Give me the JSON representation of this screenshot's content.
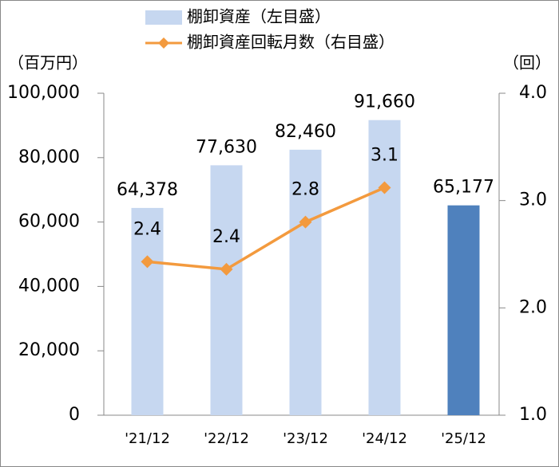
{
  "chart_data": {
    "type": "bar_line",
    "y_label": "（百万円）",
    "y2_label": "（回）",
    "categories": [
      "'21/12",
      "'22/12",
      "'23/12",
      "'24/12",
      "'25/12"
    ],
    "series": [
      {
        "name": "棚卸資産（左目盛）",
        "type": "bar",
        "color": "#c6d7f0",
        "colors": [
          "#c6d7f0",
          "#c6d7f0",
          "#c6d7f0",
          "#c6d7f0",
          "#4f81bd"
        ],
        "values": [
          64378,
          77630,
          82460,
          91660,
          65177
        ],
        "value_labels": [
          "64,378",
          "77,630",
          "82,460",
          "91,660",
          "65,177"
        ]
      },
      {
        "name": "棚卸資産回転月数（右目盛）",
        "type": "line",
        "axis": "y2",
        "color": "#f39a3e",
        "values": [
          2.43,
          2.36,
          2.8,
          3.12,
          null
        ],
        "value_labels": [
          "2.4",
          "2.4",
          "2.8",
          "3.1",
          null
        ]
      }
    ],
    "ylim": [
      0,
      100000
    ],
    "yticks": [
      0,
      {
        "value": 20000,
        "label": "20,000"
      },
      {
        "value": 40000,
        "label": "40,000"
      },
      {
        "value": 60000,
        "label": "60,000"
      },
      {
        "value": 80000,
        "label": "80,000"
      },
      {
        "value": 100000,
        "label": "100,000"
      }
    ],
    "y2lim": [
      1,
      4
    ],
    "y2ticks": [
      {
        "value": 1,
        "label": "1.0"
      },
      {
        "value": 2,
        "label": "2.0"
      },
      {
        "value": 3,
        "label": "3.0"
      },
      {
        "value": 4,
        "label": "4.0"
      }
    ]
  }
}
